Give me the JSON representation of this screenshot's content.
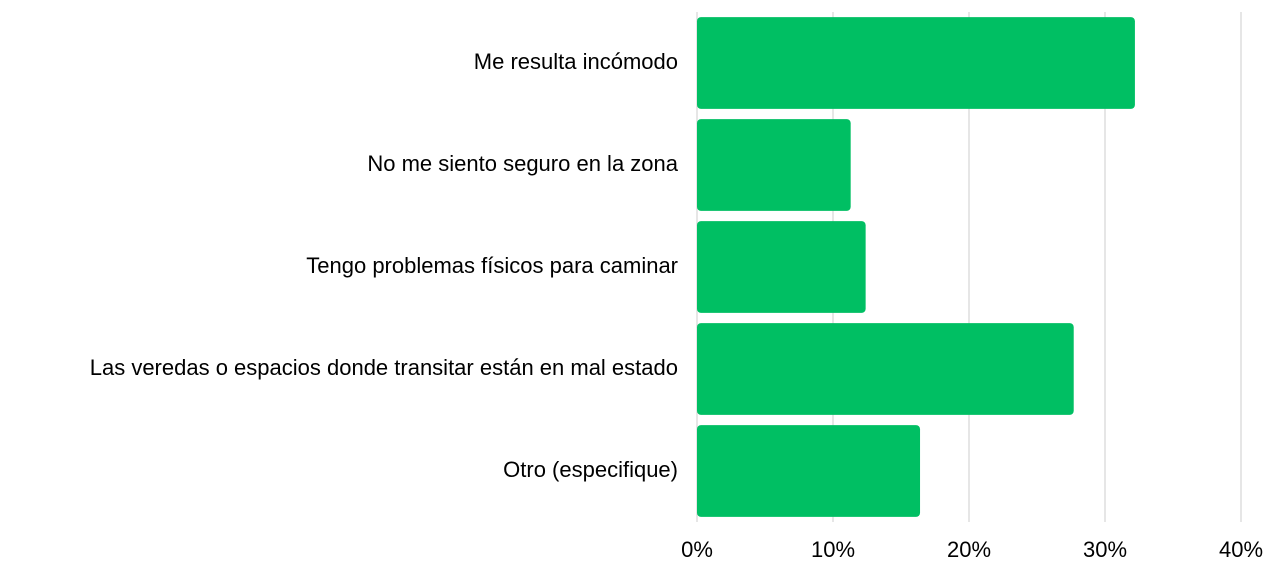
{
  "chart_data": {
    "type": "bar",
    "orientation": "horizontal",
    "categories": [
      "Me resulta incómodo",
      "No me siento seguro en la zona",
      "Tengo problemas físicos para caminar",
      "Las veredas o espacios donde transitar están en mal estado",
      "Otro (especifique)"
    ],
    "values": [
      32.2,
      11.3,
      12.4,
      27.7,
      16.4
    ],
    "color": "#00bf63",
    "xlim": [
      0,
      40
    ],
    "xticks": [
      {
        "value": 0,
        "label": "0%"
      },
      {
        "value": 10,
        "label": "10%"
      },
      {
        "value": 20,
        "label": "20%"
      },
      {
        "value": 30,
        "label": "30%"
      },
      {
        "value": 40,
        "label": "40%"
      }
    ],
    "grid": true
  }
}
